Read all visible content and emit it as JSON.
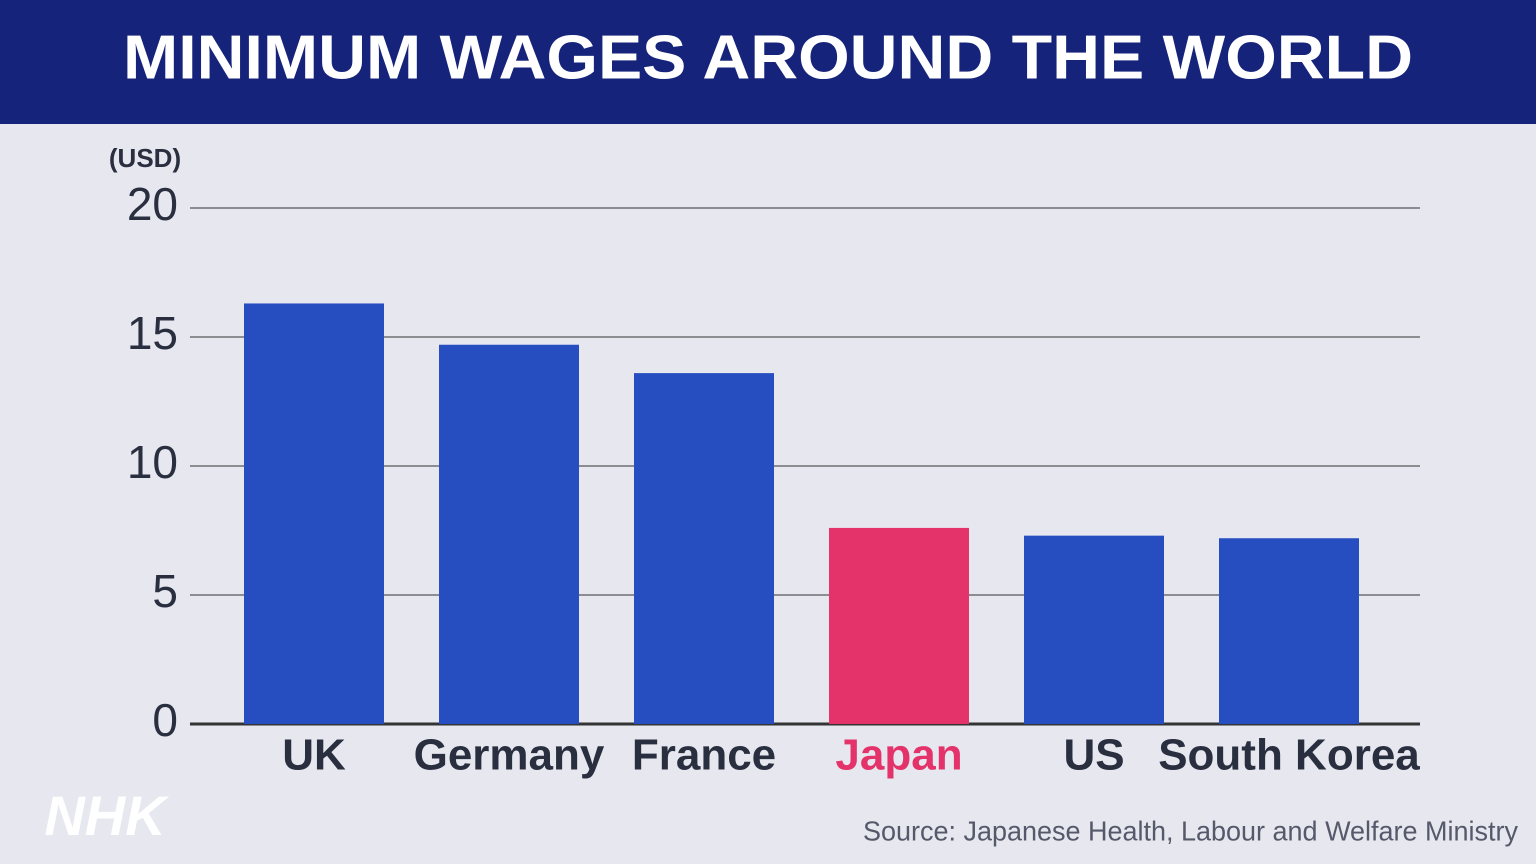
{
  "chart_data": {
    "type": "bar",
    "title": "MINIMUM WAGES AROUND THE WORLD",
    "y_label": "(USD)",
    "categories": [
      "UK",
      "Germany",
      "France",
      "Japan",
      "US",
      "South Korea"
    ],
    "values": [
      16.3,
      14.7,
      13.6,
      7.6,
      7.3,
      7.2
    ],
    "color": "#264ec0",
    "colors": [
      "#264ec0",
      "#264ec0",
      "#264ec0",
      "#e3336a",
      "#264ec0",
      "#264ec0"
    ],
    "ylim": [
      0,
      20
    ],
    "yticks": [
      0,
      5,
      10,
      15,
      20
    ],
    "grid": true,
    "source": "Source: Japanese Health, Labour and Welfare Ministry",
    "logo": "NHK"
  }
}
